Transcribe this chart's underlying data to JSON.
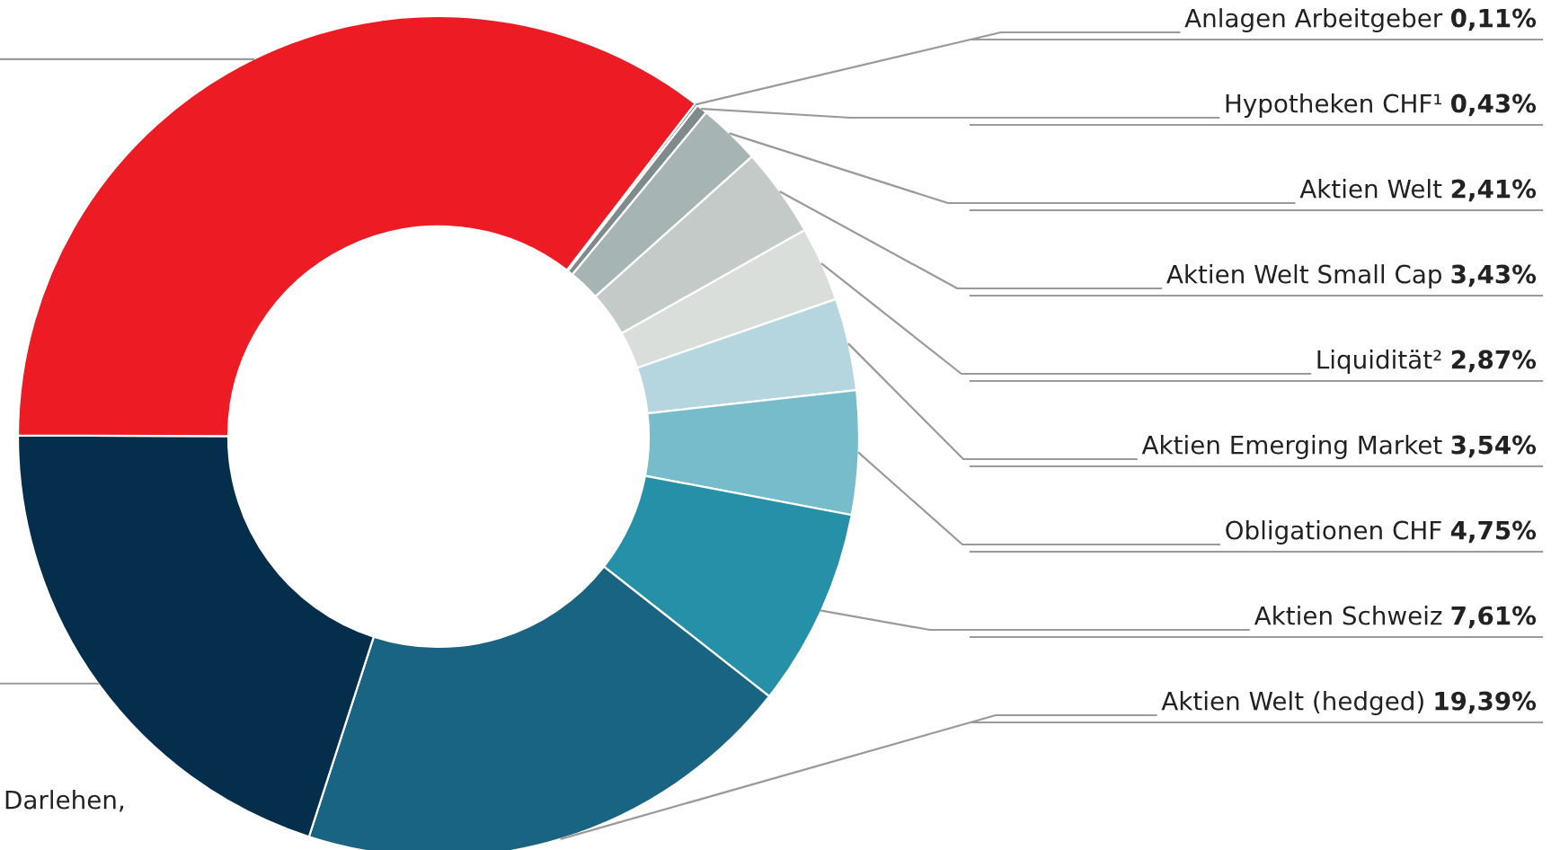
{
  "chart_data": {
    "type": "donut",
    "categories": [
      "Anlagen Arbeitgeber",
      "Hypotheken CHF¹",
      "Aktien Welt",
      "Aktien Welt Small Cap",
      "Liquidität²",
      "Aktien Emerging Market",
      "Obligationen CHF",
      "Aktien Schweiz",
      "Aktien Welt (hedged)",
      null,
      null
    ],
    "values": [
      0.11,
      0.43,
      2.41,
      3.43,
      2.87,
      3.54,
      4.75,
      7.61,
      19.39,
      20.06,
      35.4
    ],
    "value_labels": [
      "0,11%",
      "0,43%",
      "2,41%",
      "3,43%",
      "2,87%",
      "3,54%",
      "4,75%",
      "7,61%",
      "19,39%",
      null,
      null
    ],
    "colors": [
      "#5c6566",
      "#7f8b8b",
      "#a7b4b4",
      "#c3cac8",
      "#dadedb",
      "#b5d5df",
      "#76bccb",
      "#2690a8",
      "#186482",
      "#052e4d",
      "#ed1c24"
    ],
    "annotations": [
      "Darlehen,"
    ]
  }
}
